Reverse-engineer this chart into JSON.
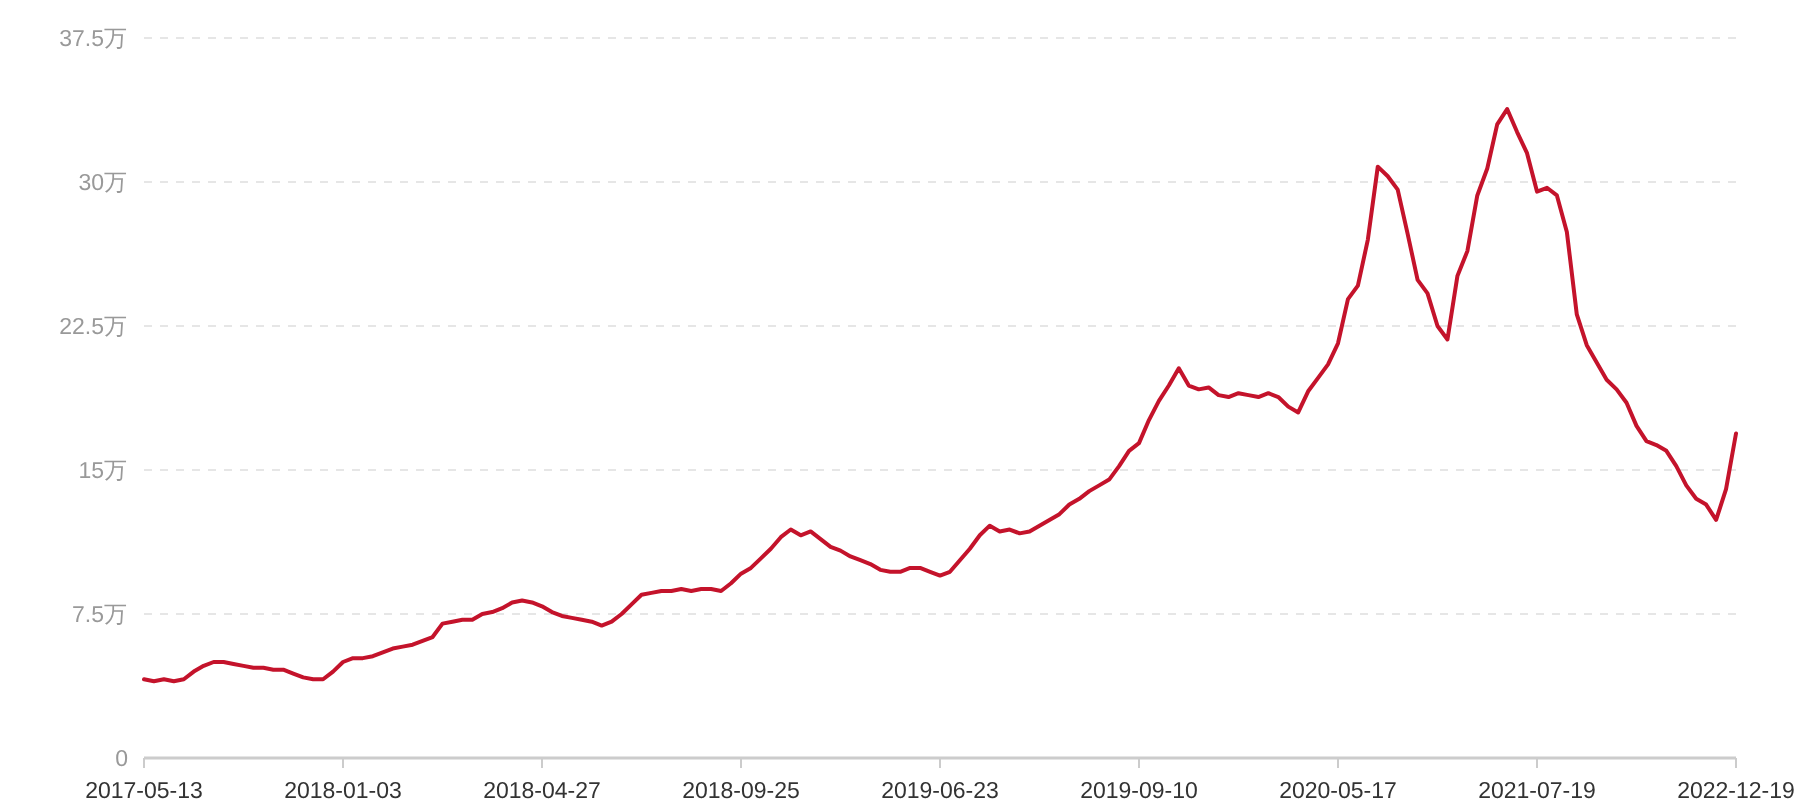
{
  "chart_data": {
    "type": "line",
    "categories": [
      "2017-05-13",
      null,
      null,
      null,
      null,
      null,
      null,
      null,
      null,
      null,
      null,
      null,
      null,
      null,
      null,
      null,
      null,
      null,
      null,
      null,
      "2018-01-03",
      null,
      null,
      null,
      null,
      null,
      null,
      null,
      null,
      null,
      null,
      null,
      null,
      null,
      null,
      null,
      null,
      null,
      null,
      null,
      "2018-04-27",
      null,
      null,
      null,
      null,
      null,
      null,
      null,
      null,
      null,
      null,
      null,
      null,
      null,
      null,
      null,
      null,
      null,
      null,
      null,
      "2018-09-25",
      null,
      null,
      null,
      null,
      null,
      null,
      null,
      null,
      null,
      null,
      null,
      null,
      null,
      null,
      null,
      null,
      null,
      null,
      null,
      "2019-06-23",
      null,
      null,
      null,
      null,
      null,
      null,
      null,
      null,
      null,
      null,
      null,
      null,
      null,
      null,
      null,
      null,
      null,
      null,
      null,
      "2019-09-10",
      null,
      null,
      null,
      null,
      null,
      null,
      null,
      null,
      null,
      null,
      null,
      null,
      null,
      null,
      null,
      null,
      null,
      null,
      null,
      "2020-05-17",
      null,
      null,
      null,
      null,
      null,
      null,
      null,
      null,
      null,
      null,
      null,
      null,
      null,
      null,
      null,
      null,
      null,
      null,
      null,
      "2021-07-19",
      null,
      null,
      null,
      null,
      null,
      null,
      null,
      null,
      null,
      null,
      null,
      null,
      null,
      null,
      null,
      null,
      null,
      null,
      null,
      "2022-12-19"
    ],
    "series": [
      {
        "color": "#c4132b",
        "values": [
          4.1,
          4.0,
          4.1,
          4.0,
          4.1,
          4.5,
          4.8,
          5.0,
          5.0,
          4.9,
          4.8,
          4.7,
          4.7,
          4.6,
          4.6,
          4.4,
          4.2,
          4.1,
          4.1,
          4.5,
          5.0,
          5.2,
          5.2,
          5.3,
          5.5,
          5.7,
          5.8,
          5.9,
          6.1,
          6.3,
          7.0,
          7.1,
          7.2,
          7.2,
          7.5,
          7.6,
          7.8,
          8.1,
          8.2,
          8.1,
          7.9,
          7.6,
          7.4,
          7.3,
          7.2,
          7.1,
          6.9,
          7.1,
          7.5,
          8.0,
          8.5,
          8.6,
          8.7,
          8.7,
          8.8,
          8.7,
          8.8,
          8.8,
          8.7,
          9.1,
          9.6,
          9.9,
          10.4,
          10.9,
          11.5,
          11.9,
          11.6,
          11.8,
          11.4,
          11.0,
          10.8,
          10.5,
          10.3,
          10.1,
          9.8,
          9.7,
          9.7,
          9.9,
          9.9,
          9.7,
          9.5,
          9.7,
          10.3,
          10.9,
          11.6,
          12.1,
          11.8,
          11.9,
          11.7,
          11.8,
          12.1,
          12.4,
          12.7,
          13.2,
          13.5,
          13.9,
          14.2,
          14.5,
          15.2,
          16.0,
          16.4,
          17.6,
          18.6,
          19.4,
          20.3,
          19.4,
          19.2,
          19.3,
          18.9,
          18.8,
          19.0,
          18.9,
          18.8,
          19.0,
          18.8,
          18.3,
          18.0,
          19.1,
          19.8,
          20.5,
          21.6,
          23.9,
          24.6,
          27.0,
          30.8,
          30.3,
          29.6,
          27.3,
          24.9,
          24.2,
          22.5,
          21.8,
          25.1,
          26.4,
          29.3,
          30.7,
          33.0,
          33.8,
          32.6,
          31.5,
          29.5,
          29.7,
          29.3,
          27.4,
          23.1,
          21.5,
          20.6,
          19.7,
          19.2,
          18.5,
          17.3,
          16.5,
          16.3,
          16.0,
          15.2,
          14.2,
          13.5,
          13.2,
          12.4,
          14.0,
          16.9
        ]
      }
    ],
    "ylim": [
      0,
      37.5
    ],
    "yticks": [
      0,
      {
        "value": 7.5,
        "label": "7.5万"
      },
      {
        "value": 15,
        "label": "15万"
      },
      {
        "value": 22.5,
        "label": "22.5万"
      },
      {
        "value": 30,
        "label": "30万"
      },
      {
        "value": 37.5,
        "label": "37.5万"
      }
    ],
    "grid": "y",
    "marker": "none",
    "line_style": "solid"
  }
}
